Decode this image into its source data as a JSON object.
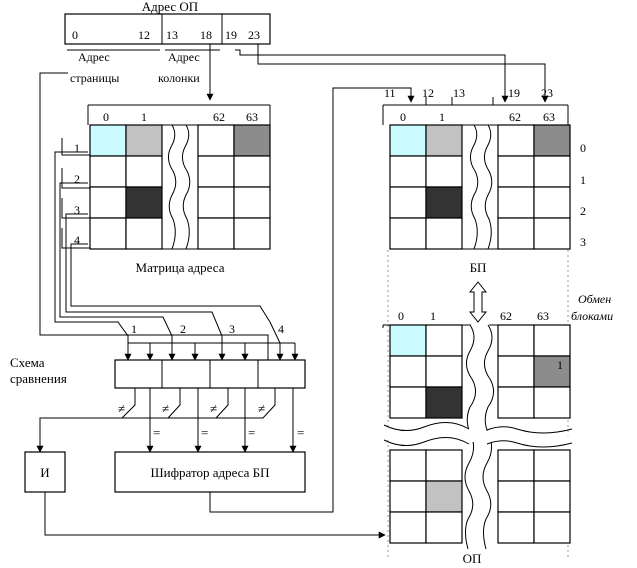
{
  "colors": {
    "cyan": "#ccfbff",
    "light_gray": "#c2c2c2",
    "mid_gray": "#8c8c8c",
    "dark": "#333333"
  },
  "address_register": {
    "title": "Адрес ОП",
    "bits": [
      "0",
      "12",
      "13",
      "18",
      "19",
      "23"
    ],
    "page_label_1": "Адрес",
    "page_label_2": "страницы",
    "col_label_1": "Адрес",
    "col_label_2": "колонки"
  },
  "address_matrix": {
    "caption": "Матрица адреса",
    "col_labels": [
      "0",
      "1",
      "62",
      "63"
    ],
    "row_labels": [
      "1",
      "2",
      "3",
      "4"
    ]
  },
  "buffer_memory": {
    "caption": "БП",
    "bits": [
      "11",
      "12",
      "13",
      "19",
      "23"
    ],
    "col_labels": [
      "0",
      "1",
      "62",
      "63"
    ],
    "row_labels": [
      "0",
      "1",
      "2",
      "3"
    ]
  },
  "main_memory": {
    "caption": "ОП",
    "col_labels": [
      "0",
      "1",
      "62",
      "63"
    ],
    "marker": "1"
  },
  "block_exchange": {
    "line1": "Обмен",
    "line2": "блоками"
  },
  "comparator": {
    "line1": "Схема",
    "line2": "сравнения",
    "inputs": [
      "1",
      "2",
      "3",
      "4"
    ],
    "ne": [
      "≠",
      "≠",
      "≠",
      "≠"
    ],
    "eq": [
      "=",
      "=",
      "=",
      "="
    ]
  },
  "and_gate": {
    "label": "И"
  },
  "encoder": {
    "label": "Шифратор адреса БП"
  }
}
